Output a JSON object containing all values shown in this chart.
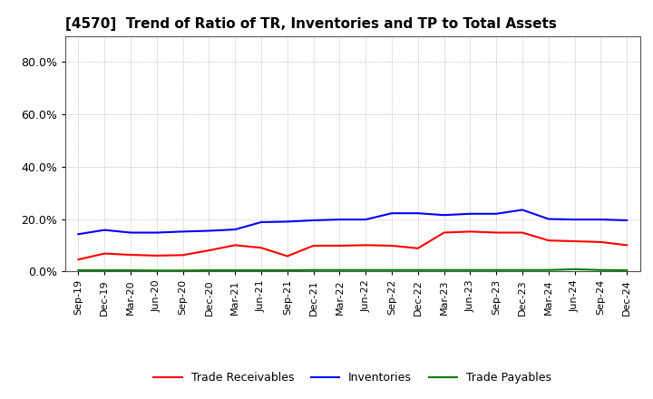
{
  "title": "[4570]  Trend of Ratio of TR, Inventories and TP to Total Assets",
  "x_labels": [
    "Sep-19",
    "Dec-19",
    "Mar-20",
    "Jun-20",
    "Sep-20",
    "Dec-20",
    "Mar-21",
    "Jun-21",
    "Sep-21",
    "Dec-21",
    "Mar-22",
    "Jun-22",
    "Sep-22",
    "Dec-22",
    "Mar-23",
    "Jun-23",
    "Sep-23",
    "Dec-23",
    "Mar-24",
    "Jun-24",
    "Sep-24",
    "Dec-24"
  ],
  "trade_receivables": [
    0.045,
    0.068,
    0.063,
    0.06,
    0.062,
    0.08,
    0.1,
    0.09,
    0.058,
    0.098,
    0.098,
    0.1,
    0.098,
    0.088,
    0.148,
    0.152,
    0.148,
    0.148,
    0.118,
    0.115,
    0.112,
    0.1
  ],
  "inventories": [
    0.142,
    0.158,
    0.148,
    0.148,
    0.152,
    0.155,
    0.16,
    0.188,
    0.19,
    0.195,
    0.198,
    0.198,
    0.222,
    0.222,
    0.215,
    0.22,
    0.22,
    0.235,
    0.2,
    0.198,
    0.198,
    0.195
  ],
  "trade_payables": [
    0.004,
    0.004,
    0.004,
    0.003,
    0.003,
    0.004,
    0.004,
    0.004,
    0.004,
    0.005,
    0.005,
    0.005,
    0.005,
    0.005,
    0.005,
    0.005,
    0.005,
    0.005,
    0.005,
    0.008,
    0.005,
    0.004
  ],
  "tr_color": "#ff0000",
  "inv_color": "#0000ff",
  "tp_color": "#008000",
  "ylim": [
    0.0,
    0.9
  ],
  "yticks": [
    0.0,
    0.2,
    0.4,
    0.6,
    0.8
  ],
  "grid_color": "#aaaaaa",
  "bg_color": "#ffffff",
  "legend_labels": [
    "Trade Receivables",
    "Inventories",
    "Trade Payables"
  ],
  "title_fontsize": 11,
  "tick_fontsize": 8,
  "legend_fontsize": 9
}
